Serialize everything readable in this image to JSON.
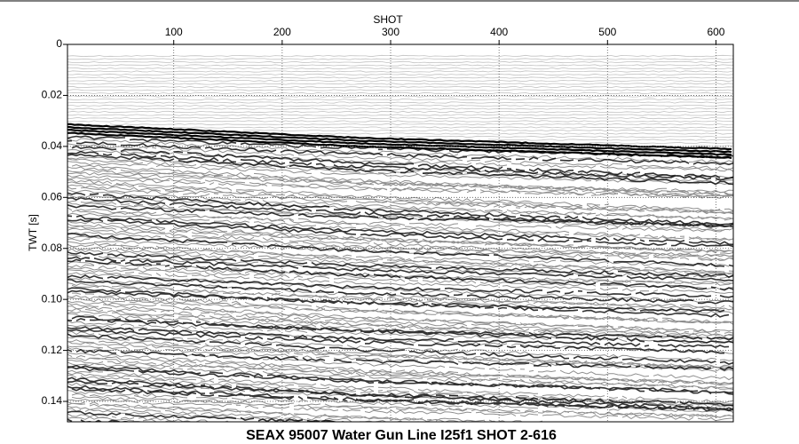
{
  "chart_data": {
    "type": "seismic",
    "title": "SEAX 95007 Water Gun Line I25f1 SHOT 2-616",
    "x_label": "SHOT",
    "y_label": "TWT [s]",
    "xlim": [
      2,
      616
    ],
    "xticks": [
      100,
      200,
      300,
      400,
      500,
      600
    ],
    "ylim": [
      0,
      0.148
    ],
    "yticks": [
      0,
      0.02,
      0.04,
      0.06,
      0.08,
      {
        "value": 0.1,
        "label": "0.10"
      },
      0.12,
      0.14
    ],
    "grid": true,
    "color": "#000000"
  }
}
